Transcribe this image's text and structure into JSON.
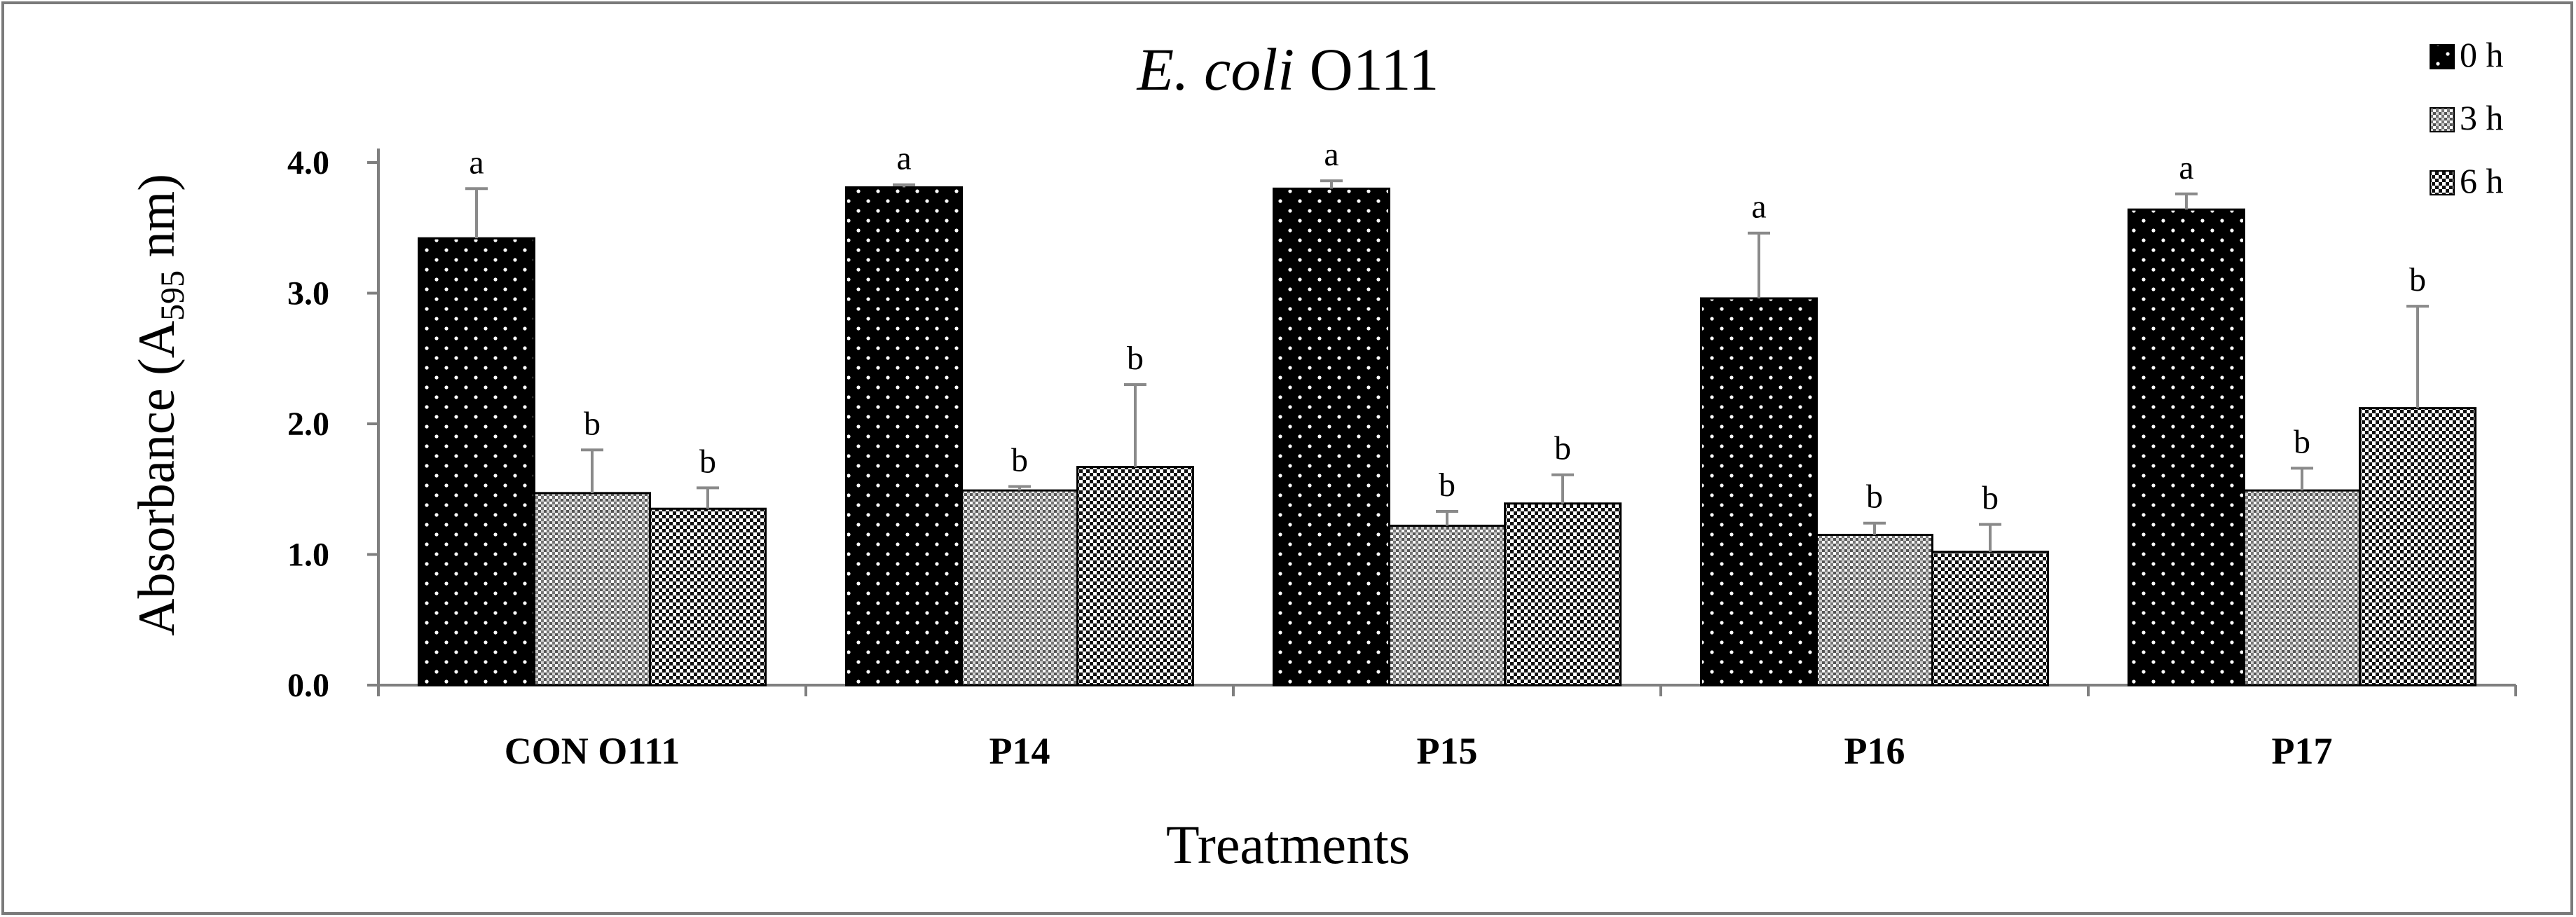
{
  "chart_data": {
    "type": "bar",
    "title_italic": "E. coli",
    "title_plain": " O111",
    "xlabel": "Treatments",
    "ylabel_prefix": "Absorbance (A",
    "ylabel_subscript": "595",
    "ylabel_suffix": " nm)",
    "ylim": [
      0,
      4
    ],
    "yticks": [
      "0.0",
      "1.0",
      "2.0",
      "3.0",
      "4.0"
    ],
    "ytick_values": [
      0,
      1,
      2,
      3,
      4
    ],
    "grid": false,
    "legend_position": "top-right",
    "categories": [
      "CON O111",
      "P14",
      "P15",
      "P16",
      "P17"
    ],
    "series": [
      {
        "name": "0 h",
        "pattern": "black-dotted",
        "values": [
          3.42,
          3.81,
          3.8,
          2.96,
          3.64
        ],
        "errors": [
          0.38,
          0.02,
          0.06,
          0.5,
          0.12
        ],
        "letters": [
          "a",
          "a",
          "a",
          "a",
          "a"
        ]
      },
      {
        "name": "3 h",
        "pattern": "grey-grid",
        "values": [
          1.47,
          1.49,
          1.22,
          1.15,
          1.49
        ],
        "errors": [
          0.33,
          0.03,
          0.11,
          0.09,
          0.17
        ],
        "letters": [
          "b",
          "b",
          "b",
          "b",
          "b"
        ]
      },
      {
        "name": "6 h",
        "pattern": "checker",
        "values": [
          1.35,
          1.67,
          1.39,
          1.02,
          2.12
        ],
        "errors": [
          0.16,
          0.63,
          0.22,
          0.21,
          0.78
        ],
        "letters": [
          "b",
          "b",
          "b",
          "b",
          "b"
        ]
      }
    ]
  }
}
